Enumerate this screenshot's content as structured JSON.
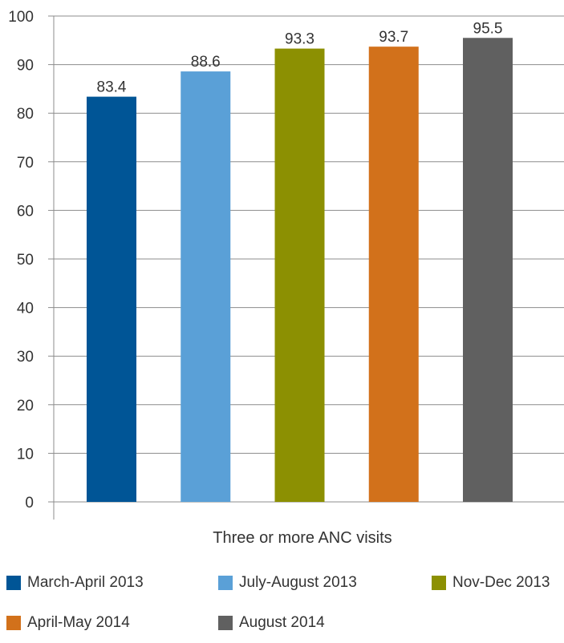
{
  "chart_data": {
    "type": "bar",
    "xlabel": "Three or more ANC visits",
    "ylabel": "",
    "ylim": [
      0,
      100
    ],
    "yticks": [
      0,
      10,
      20,
      30,
      40,
      50,
      60,
      70,
      80,
      90,
      100
    ],
    "grid": true,
    "legend_position": "bottom",
    "series": [
      {
        "name": "March-April 2013",
        "value": 83.4,
        "color": "#005596",
        "label": "83.4"
      },
      {
        "name": "July-August 2013",
        "value": 88.6,
        "color": "#5aa0d7",
        "label": "88.6"
      },
      {
        "name": "Nov-Dec 2013",
        "value": 93.3,
        "color": "#8c9002",
        "label": "93.3"
      },
      {
        "name": "April-May 2014",
        "value": 93.7,
        "color": "#d2711b",
        "label": "93.7"
      },
      {
        "name": "August 2014",
        "value": 95.5,
        "color": "#606060",
        "label": "95.5"
      }
    ]
  }
}
